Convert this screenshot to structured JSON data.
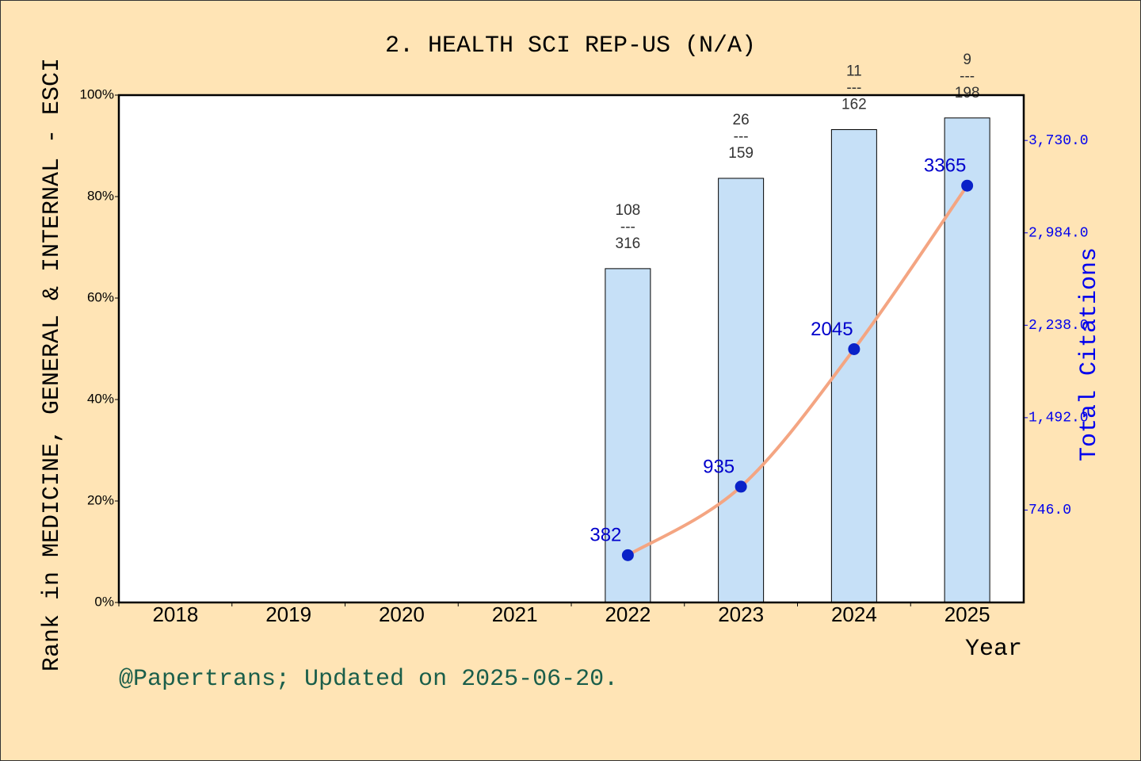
{
  "chart_data": {
    "type": "bar",
    "title": "2. HEALTH SCI REP-US (N/A)",
    "y_label": "Rank in MEDICINE, GENERAL & INTERNAL - ESCI",
    "y2_label": "Total Citations",
    "x_label": "Year",
    "footer": "@Papertrans; Updated on 2025-06-20.",
    "categories": [
      "2018",
      "2019",
      "2020",
      "2021",
      "2022",
      "2023",
      "2024",
      "2025"
    ],
    "series": [
      {
        "type": "bar",
        "color": "#c6e0f7",
        "values": [
          null,
          null,
          null,
          null,
          65.8,
          83.6,
          93.2,
          95.5
        ],
        "value_labels": [
          null,
          null,
          null,
          null,
          "108\n---\n316",
          "26\n---\n159",
          "11\n---\n162",
          "9\n---\n198"
        ]
      },
      {
        "type": "line",
        "axis": "y2",
        "color": "#f4a582",
        "marker_color": "#0a22c8",
        "values": [
          null,
          null,
          null,
          null,
          382,
          935,
          2045,
          3365
        ]
      }
    ],
    "ylim": [
      0,
      100
    ],
    "yticks": [
      {
        "value": 0,
        "label": "0%"
      },
      {
        "value": 20,
        "label": "20%"
      },
      {
        "value": 40,
        "label": "40%"
      },
      {
        "value": 60,
        "label": "60%"
      },
      {
        "value": 80,
        "label": "80%"
      },
      {
        "value": 100,
        "label": "100%"
      }
    ],
    "y2lim": [
      0,
      4096
    ],
    "y2ticks": [
      {
        "value": 746,
        "label": "746.0"
      },
      {
        "value": 1492,
        "label": "1,492.0"
      },
      {
        "value": 2238,
        "label": "2,238.0"
      },
      {
        "value": 2984,
        "label": "2,984.0"
      },
      {
        "value": 3730,
        "label": "3,730.0"
      }
    ]
  }
}
